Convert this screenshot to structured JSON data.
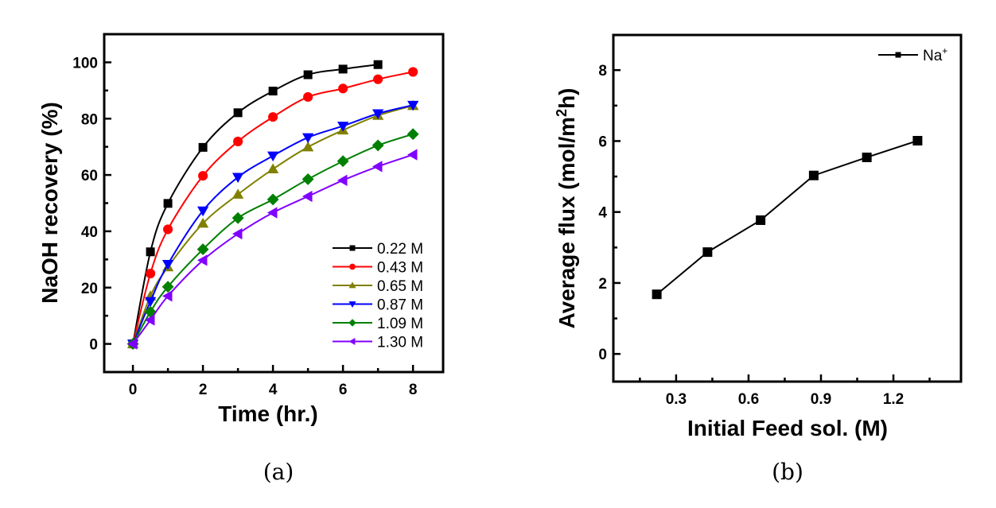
{
  "chart_data": [
    {
      "type": "line",
      "panel": "a",
      "caption": "(a)",
      "title": "",
      "xlabel": "Time (hr.)",
      "ylabel": "NaOH recovery (%)",
      "xlim": [
        -0.82,
        8.86
      ],
      "ylim": [
        -10,
        110
      ],
      "xticks": [
        0,
        2,
        4,
        6,
        8
      ],
      "xtick_labels": [
        "0",
        "2",
        "4",
        "6",
        "8"
      ],
      "xminor": [
        1,
        3,
        5,
        7
      ],
      "yticks": [
        0,
        20,
        40,
        60,
        80,
        100
      ],
      "ytick_labels": [
        "0",
        "20",
        "40",
        "60",
        "80",
        "100"
      ],
      "yminor": [
        10,
        30,
        50,
        70,
        90
      ],
      "grid": false,
      "legend_position": "bottom-right",
      "series": [
        {
          "name": "0.22 M",
          "color": "#000000",
          "marker": "square",
          "x": [
            0,
            0.5,
            1,
            2,
            3,
            4,
            5,
            6,
            7
          ],
          "values": [
            0,
            32.7,
            49.9,
            69.8,
            82.1,
            89.8,
            95.6,
            97.6,
            99.2
          ]
        },
        {
          "name": "0.43 M",
          "color": "#ff0000",
          "marker": "circle",
          "x": [
            0,
            0.5,
            1,
            2,
            3,
            4,
            5,
            6,
            7,
            8
          ],
          "values": [
            0,
            25.0,
            40.7,
            59.7,
            71.9,
            80.6,
            87.7,
            90.7,
            94.0,
            96.6
          ]
        },
        {
          "name": "0.65 M",
          "color": "#808000",
          "marker": "triangle-up",
          "x": [
            0,
            0.5,
            1,
            2,
            3,
            4,
            5,
            6,
            7,
            8
          ],
          "values": [
            0,
            17.0,
            27.3,
            42.8,
            53.1,
            62.1,
            69.9,
            75.9,
            81.1,
            84.6
          ]
        },
        {
          "name": "0.87 M",
          "color": "#0000ff",
          "marker": "triangle-down",
          "x": [
            0,
            0.5,
            1,
            2,
            3,
            4,
            5,
            6,
            7,
            8
          ],
          "values": [
            0,
            15.1,
            28.3,
            47.3,
            59.2,
            66.8,
            73.3,
            77.4,
            81.8,
            84.8
          ]
        },
        {
          "name": "1.09 M",
          "color": "#008000",
          "marker": "diamond",
          "x": [
            0,
            0.5,
            1,
            2,
            3,
            4,
            5,
            6,
            7,
            8
          ],
          "values": [
            0,
            11.4,
            20.3,
            33.6,
            44.7,
            51.3,
            58.5,
            64.9,
            70.5,
            74.5
          ]
        },
        {
          "name": "1.30 M",
          "color": "#8000ff",
          "marker": "triangle-left",
          "x": [
            0,
            0.5,
            1,
            2,
            3,
            4,
            5,
            6,
            7,
            8
          ],
          "values": [
            0,
            8.5,
            17.0,
            29.7,
            39.1,
            46.6,
            52.4,
            58.1,
            63.0,
            67.2
          ]
        }
      ]
    },
    {
      "type": "line",
      "panel": "b",
      "caption": "(b)",
      "title": "",
      "xlabel": "Initial Feed sol. (M)",
      "ylabel_parts": [
        "Average flux (mol/m",
        "2",
        "h)"
      ],
      "ylabel": "Average flux (mol/m²h)",
      "xlim": [
        0.04,
        1.48
      ],
      "ylim": [
        -0.78,
        8.99
      ],
      "xticks": [
        0.3,
        0.6,
        0.9,
        1.2
      ],
      "xtick_labels": [
        "0.3",
        "0.6",
        "0.9",
        "1.2"
      ],
      "xminor": [
        0.15,
        0.45,
        0.75,
        1.05,
        1.35
      ],
      "yticks": [
        0,
        2,
        4,
        6,
        8
      ],
      "ytick_labels": [
        "0",
        "2",
        "4",
        "6",
        "8"
      ],
      "yminor": [
        1,
        3,
        5,
        7
      ],
      "grid": false,
      "legend_position": "top-right",
      "series": [
        {
          "name": "Na",
          "name_sup": "+",
          "color": "#000000",
          "marker": "square",
          "x": [
            0.22,
            0.43,
            0.65,
            0.87,
            1.09,
            1.3
          ],
          "values": [
            1.68,
            2.87,
            3.77,
            5.03,
            5.54,
            6.01
          ]
        }
      ]
    }
  ]
}
